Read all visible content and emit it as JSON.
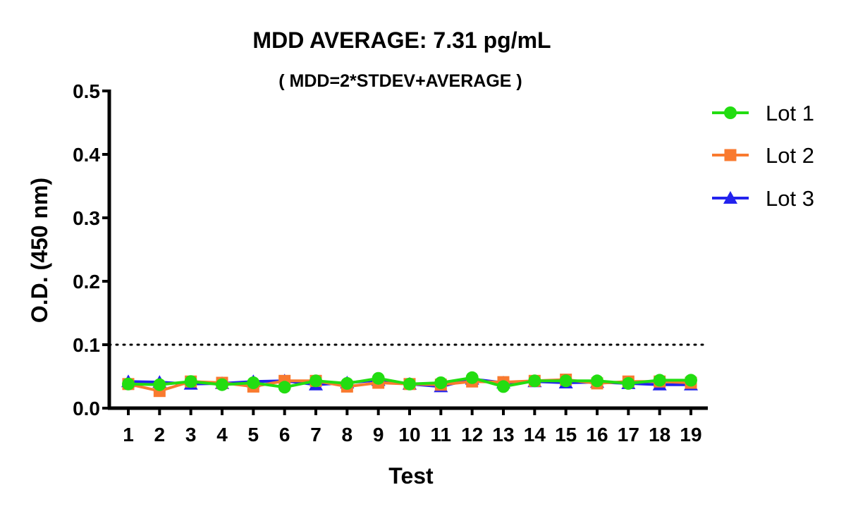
{
  "chart_data": {
    "type": "line",
    "title": "MDD AVERAGE:  7.31 pg/mL",
    "subtitle": "( MDD=2*STDEV+AVERAGE )",
    "xlabel": "Test",
    "ylabel": "O.D. (450 nm)",
    "categories": [
      "1",
      "2",
      "3",
      "4",
      "5",
      "6",
      "7",
      "8",
      "9",
      "10",
      "11",
      "12",
      "13",
      "14",
      "15",
      "16",
      "17",
      "18",
      "19"
    ],
    "ylim": [
      0,
      0.5
    ],
    "yticks": [
      "0.0",
      "0.1",
      "0.2",
      "0.3",
      "0.4",
      "0.5"
    ],
    "reference_line": {
      "y": 0.1,
      "style": "dotted"
    },
    "grid": false,
    "legend_position": "right",
    "series": [
      {
        "name": "Lot 1",
        "color": "#22dd11",
        "marker": "circle",
        "values": [
          0.038,
          0.037,
          0.042,
          0.037,
          0.04,
          0.033,
          0.043,
          0.039,
          0.047,
          0.038,
          0.04,
          0.048,
          0.034,
          0.043,
          0.043,
          0.043,
          0.039,
          0.044,
          0.044
        ]
      },
      {
        "name": "Lot 2",
        "color": "#f97a2f",
        "marker": "square",
        "values": [
          0.038,
          0.027,
          0.042,
          0.04,
          0.034,
          0.043,
          0.043,
          0.034,
          0.04,
          0.038,
          0.037,
          0.042,
          0.041,
          0.043,
          0.045,
          0.039,
          0.042,
          0.042,
          0.04
        ]
      },
      {
        "name": "Lot 3",
        "color": "#2222ee",
        "marker": "triangle",
        "values": [
          0.042,
          0.041,
          0.038,
          0.039,
          0.042,
          0.043,
          0.037,
          0.04,
          0.044,
          0.038,
          0.034,
          0.046,
          0.04,
          0.042,
          0.04,
          0.041,
          0.039,
          0.037,
          0.037
        ]
      }
    ]
  }
}
